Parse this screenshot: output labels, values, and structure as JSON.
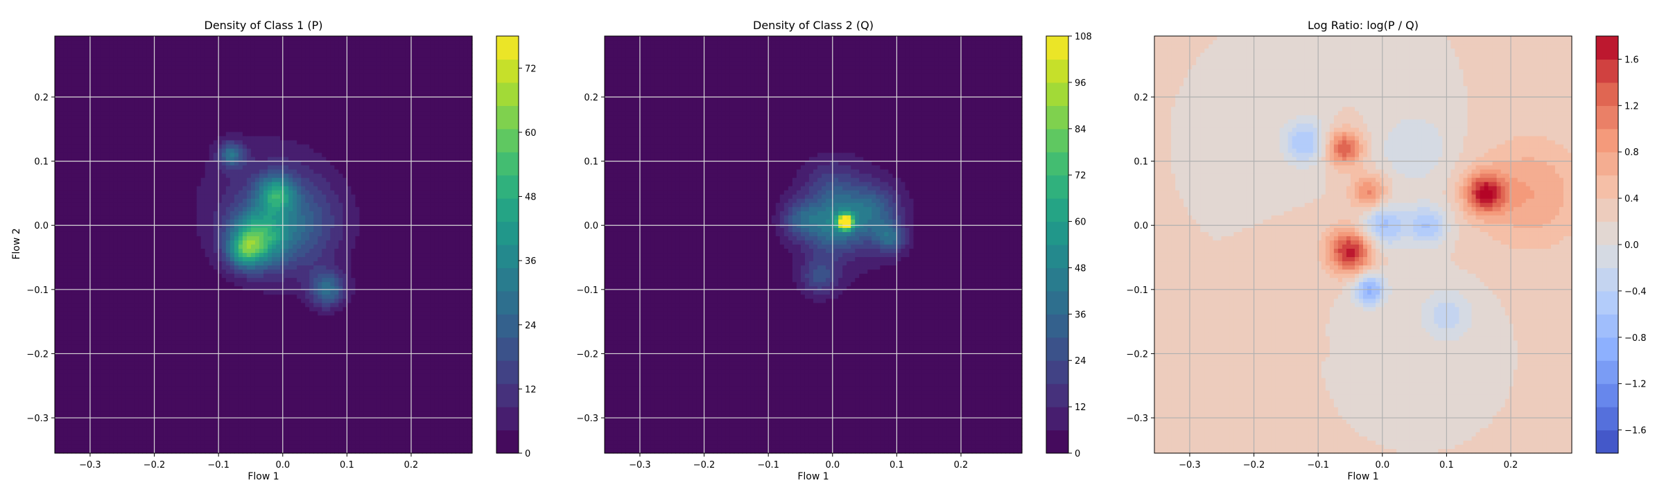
{
  "chart_data": [
    {
      "type": "heatmap",
      "title": "Density of Class 1 (P)",
      "xlabel": "Flow 1",
      "ylabel": "Flow 2",
      "xlim": [
        -0.355,
        0.295
      ],
      "ylim": [
        -0.355,
        0.295
      ],
      "xticks": [
        -0.3,
        -0.2,
        -0.1,
        0.0,
        0.1,
        0.2
      ],
      "yticks": [
        -0.3,
        -0.2,
        -0.1,
        0.0,
        0.1,
        0.2
      ],
      "grid": true,
      "colormap": "viridis",
      "colorbar": {
        "min": 0,
        "max": 78,
        "ticks": [
          0,
          12,
          24,
          36,
          48,
          60,
          72
        ]
      },
      "blobs": [
        {
          "x": -0.04,
          "y": -0.02,
          "amp": 38,
          "s": 0.03
        },
        {
          "x": -0.06,
          "y": -0.04,
          "amp": 26,
          "s": 0.018
        },
        {
          "x": -0.01,
          "y": 0.05,
          "amp": 32,
          "s": 0.02
        },
        {
          "x": -0.08,
          "y": 0.11,
          "amp": 26,
          "s": 0.014
        },
        {
          "x": 0.07,
          "y": -0.1,
          "amp": 26,
          "s": 0.02
        },
        {
          "x": 0.02,
          "y": 0.0,
          "amp": 18,
          "s": 0.05
        },
        {
          "x": -0.03,
          "y": 0.03,
          "amp": 10,
          "s": 0.08
        }
      ]
    },
    {
      "type": "heatmap",
      "title": "Density of Class 2 (Q)",
      "xlabel": "Flow 1",
      "ylabel": "",
      "xlim": [
        -0.355,
        0.295
      ],
      "ylim": [
        -0.355,
        0.295
      ],
      "xticks": [
        -0.3,
        -0.2,
        -0.1,
        0.0,
        0.1,
        0.2
      ],
      "yticks": [
        -0.3,
        -0.2,
        -0.1,
        0.0,
        0.1,
        0.2
      ],
      "grid": true,
      "colormap": "viridis",
      "colorbar": {
        "min": 0,
        "max": 108,
        "ticks": [
          0,
          12,
          24,
          36,
          48,
          60,
          72,
          84,
          96,
          108
        ]
      },
      "blobs": [
        {
          "x": 0.02,
          "y": 0.005,
          "amp": 100,
          "s": 0.008
        },
        {
          "x": 0.0,
          "y": 0.0,
          "amp": 34,
          "s": 0.03
        },
        {
          "x": 0.06,
          "y": 0.02,
          "amp": 30,
          "s": 0.03
        },
        {
          "x": -0.02,
          "y": -0.08,
          "amp": 22,
          "s": 0.02
        },
        {
          "x": 0.09,
          "y": -0.02,
          "amp": 28,
          "s": 0.016
        },
        {
          "x": -0.05,
          "y": 0.01,
          "amp": 22,
          "s": 0.02
        },
        {
          "x": 0.0,
          "y": 0.06,
          "amp": 16,
          "s": 0.03
        },
        {
          "x": 0.02,
          "y": 0.0,
          "amp": 9,
          "s": 0.08
        }
      ]
    },
    {
      "type": "heatmap",
      "title": "Log Ratio: log(P / Q)",
      "xlabel": "Flow 1",
      "ylabel": "",
      "xlim": [
        -0.355,
        0.295
      ],
      "ylim": [
        -0.355,
        0.295
      ],
      "xticks": [
        -0.3,
        -0.2,
        -0.1,
        0.0,
        0.1,
        0.2
      ],
      "yticks": [
        -0.3,
        -0.2,
        -0.1,
        0.0,
        0.1,
        0.2
      ],
      "grid": true,
      "colormap": "coolwarm",
      "colorbar": {
        "min": -1.8,
        "max": 1.8,
        "ticks": [
          -1.6,
          -1.2,
          -0.8,
          -0.4,
          0.0,
          0.4,
          0.8,
          1.2,
          1.6
        ]
      },
      "baseline": 0.2,
      "blobs": [
        {
          "x": -0.05,
          "y": -0.04,
          "amp": 1.5,
          "s": 0.025
        },
        {
          "x": -0.06,
          "y": 0.12,
          "amp": 1.2,
          "s": 0.02
        },
        {
          "x": -0.02,
          "y": 0.05,
          "amp": 0.9,
          "s": 0.02
        },
        {
          "x": 0.16,
          "y": 0.05,
          "amp": 1.4,
          "s": 0.022
        },
        {
          "x": 0.23,
          "y": 0.05,
          "amp": 0.6,
          "s": 0.06
        },
        {
          "x": 0.0,
          "y": 0.0,
          "amp": -0.9,
          "s": 0.025
        },
        {
          "x": 0.07,
          "y": 0.0,
          "amp": -0.8,
          "s": 0.022
        },
        {
          "x": -0.02,
          "y": -0.1,
          "amp": -1.1,
          "s": 0.018
        },
        {
          "x": -0.12,
          "y": 0.13,
          "amp": -0.8,
          "s": 0.025
        },
        {
          "x": 0.1,
          "y": -0.14,
          "amp": -0.5,
          "s": 0.03
        },
        {
          "x": 0.05,
          "y": 0.12,
          "amp": -0.4,
          "s": 0.04
        }
      ]
    }
  ]
}
